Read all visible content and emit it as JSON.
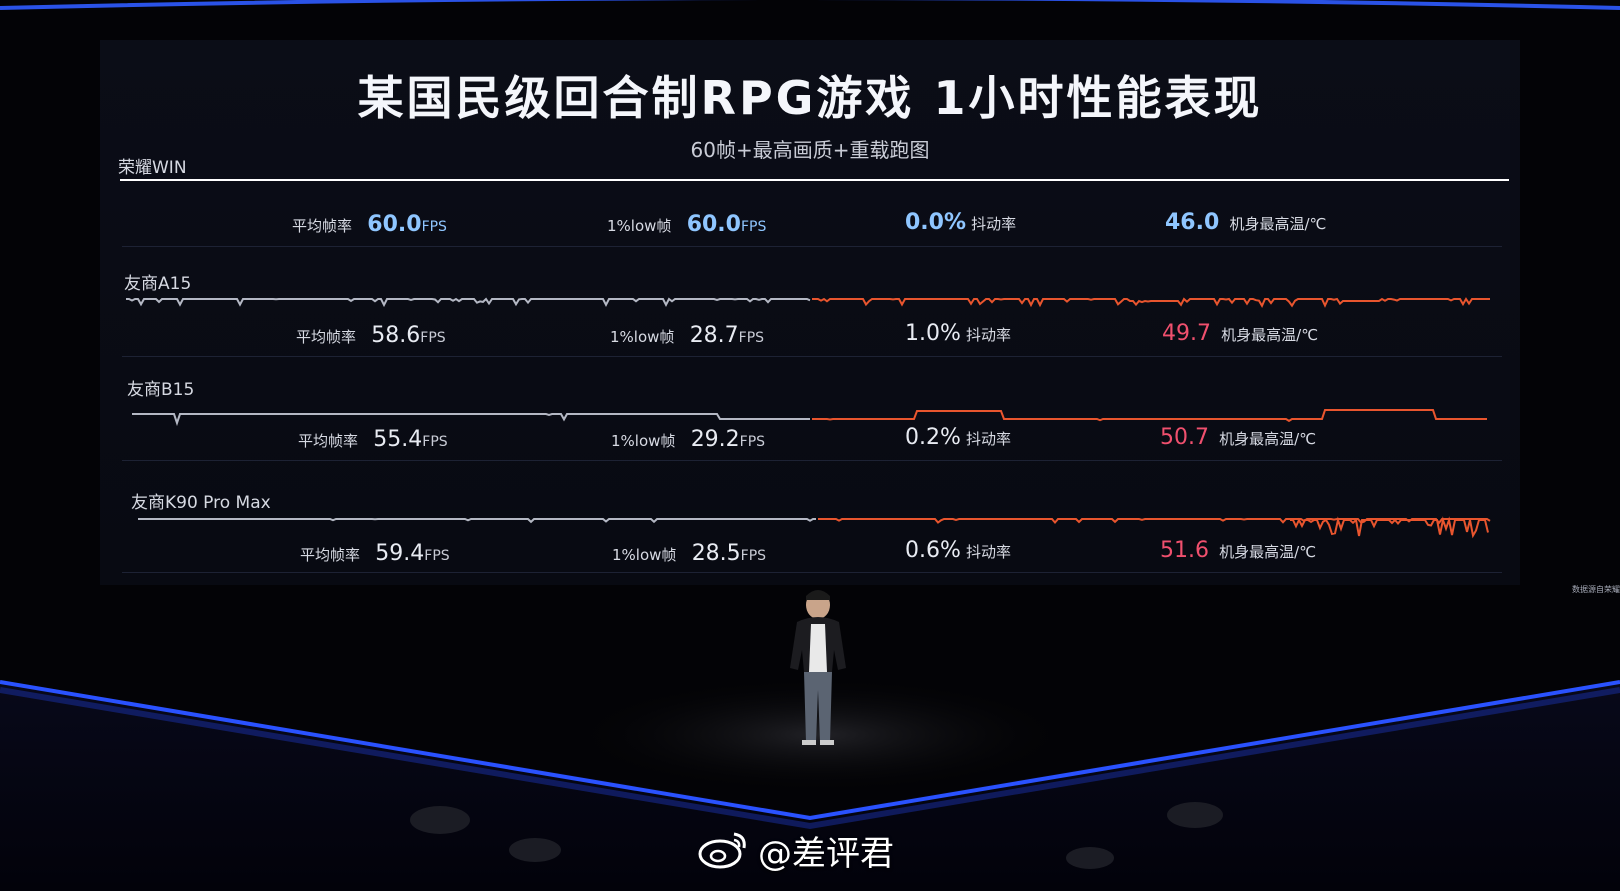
{
  "title": "某国民级回合制RPG游戏  1小时性能表现",
  "subtitle": "60帧+最高画质+重载跑图",
  "labels": {
    "avg_fps": "平均帧率",
    "low_fps": "1%low帧",
    "fps_unit": "FPS",
    "jitter": "抖动率",
    "max_temp": "机身最高温/℃"
  },
  "devices": [
    {
      "name": "荣耀WIN",
      "avg": "60.0",
      "low": "60.0",
      "jitter": "0.0%",
      "temp": "46.0"
    },
    {
      "name": "友商A15",
      "avg": "58.6",
      "low": "28.7",
      "jitter": "1.0%",
      "temp": "49.7"
    },
    {
      "name": "友商B15",
      "avg": "55.4",
      "low": "29.2",
      "jitter": "0.2%",
      "temp": "50.7"
    },
    {
      "name": "友商K90 Pro  Max",
      "avg": "59.4",
      "low": "28.5",
      "jitter": "0.6%",
      "temp": "51.6"
    }
  ],
  "source_note": "数据源自荣耀",
  "watermark": "@差评君",
  "colors": {
    "win_line": "#ffffff",
    "normal_line": "#b4b8c4",
    "hot_line": "#e8552e",
    "win_value": "#8fc6ff",
    "temp_red": "#f0506e",
    "stage_blue": "#2b56ff"
  }
}
